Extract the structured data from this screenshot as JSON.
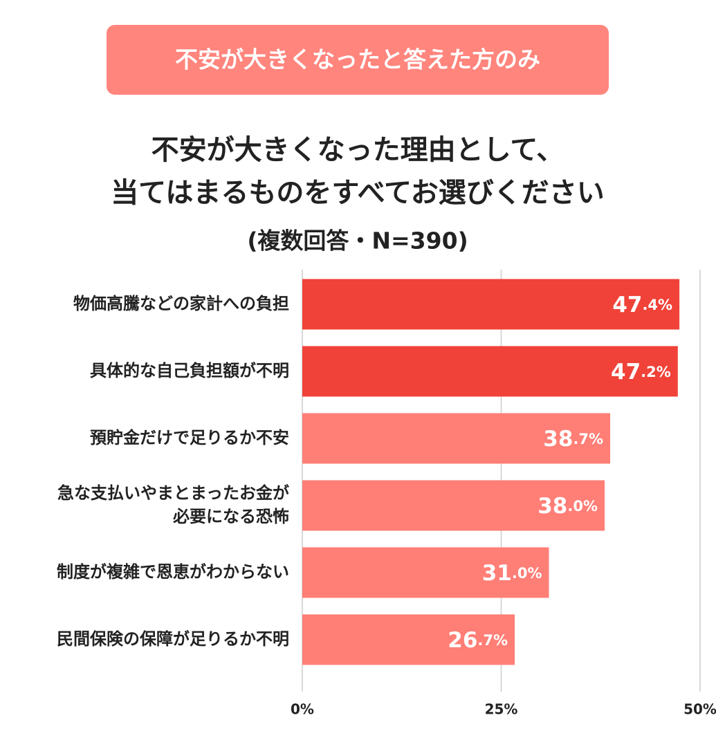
{
  "chart_data": {
    "type": "hbar",
    "badge": "不安が大きくなったと答えた方のみ",
    "title": [
      "不安が大きくなった理由として、",
      "当てはまるものをすべてお選びください"
    ],
    "subtitle": "(複数回答・N=390)",
    "categories": [
      "物価高騰などの家計への負担",
      "具体的な自己負担額が不明",
      "預貯金だけで足りるか不安",
      [
        "急な支払いやまとまったお金が",
        "必要になる恐怖"
      ],
      "制度が複雑で恩恵がわからない",
      "民間保険の保障が足りるか不明"
    ],
    "values": [
      47.4,
      47.2,
      38.7,
      38.0,
      31.0,
      26.7
    ],
    "value_labels": [
      "47.4%",
      "47.2%",
      "38.7%",
      "38.0%",
      "31.0%",
      "26.7%"
    ],
    "colors": [
      "#f04238",
      "#f04238",
      "#ff7e76",
      "#ff7e76",
      "#ff7e76",
      "#ff7e76"
    ],
    "xlim": [
      0,
      50
    ],
    "xticks": [
      {
        "value": 0,
        "label": "0%"
      },
      {
        "value": 25,
        "label": "25%"
      },
      {
        "value": 50,
        "label": "50%"
      }
    ],
    "grid": true
  }
}
